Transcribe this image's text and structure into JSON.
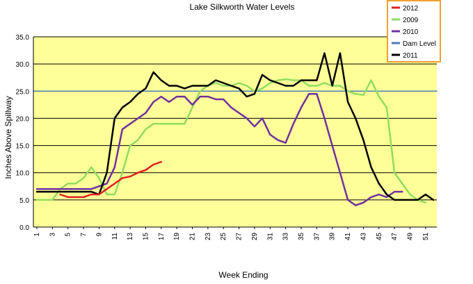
{
  "chart_data": {
    "type": "line",
    "title": "Lake Silkworth Water Levels",
    "xlabel": "Week Ending",
    "ylabel": "Inches Above Spillway",
    "xlim": [
      1,
      52
    ],
    "ylim": [
      0,
      35
    ],
    "x_ticks": [
      1,
      3,
      5,
      7,
      9,
      11,
      13,
      15,
      17,
      19,
      21,
      23,
      25,
      27,
      29,
      31,
      33,
      35,
      37,
      39,
      41,
      43,
      45,
      47,
      49,
      51
    ],
    "y_ticks": [
      "0.0",
      "5.0",
      "10.0",
      "15.0",
      "20.0",
      "25.0",
      "30.0",
      "35.0"
    ],
    "grid": true,
    "legend_position": "top-right",
    "colors": {
      "plot_background": "#ffff99",
      "grid": "#000000",
      "legend_border": "#f0a030"
    },
    "series": [
      {
        "name": "2012",
        "color": "#e02020",
        "points": [
          [
            4,
            6.0
          ],
          [
            5,
            5.5
          ],
          [
            6,
            5.5
          ],
          [
            7,
            5.5
          ],
          [
            8,
            6.0
          ],
          [
            9,
            6.0
          ],
          [
            10,
            7.0
          ],
          [
            11,
            8.0
          ],
          [
            12,
            9.0
          ],
          [
            13,
            9.3
          ],
          [
            14,
            10.0
          ],
          [
            15,
            10.5
          ],
          [
            16,
            11.5
          ],
          [
            17,
            12.0
          ]
        ]
      },
      {
        "name": "2009",
        "color": "#90dc60",
        "points": [
          [
            1,
            5.0
          ],
          [
            2,
            5.0
          ],
          [
            3,
            5.0
          ],
          [
            4,
            7.0
          ],
          [
            5,
            8.0
          ],
          [
            6,
            8.0
          ],
          [
            7,
            9.0
          ],
          [
            8,
            11.0
          ],
          [
            9,
            9.0
          ],
          [
            10,
            6.0
          ],
          [
            11,
            6.0
          ],
          [
            12,
            10.0
          ],
          [
            13,
            15.0
          ],
          [
            14,
            16.0
          ],
          [
            15,
            18.0
          ],
          [
            16,
            19.0
          ],
          [
            17,
            19.0
          ],
          [
            18,
            19.0
          ],
          [
            19,
            19.0
          ],
          [
            20,
            19.0
          ],
          [
            21,
            22.0
          ],
          [
            22,
            25.0
          ],
          [
            23,
            26.0
          ],
          [
            24,
            26.5
          ],
          [
            25,
            26.0
          ],
          [
            26,
            26.0
          ],
          [
            27,
            26.5
          ],
          [
            28,
            26.0
          ],
          [
            29,
            25.0
          ],
          [
            30,
            25.5
          ],
          [
            31,
            26.5
          ],
          [
            32,
            27.0
          ],
          [
            33,
            27.2
          ],
          [
            34,
            27.0
          ],
          [
            35,
            27.0
          ],
          [
            36,
            26.0
          ],
          [
            37,
            26.0
          ],
          [
            38,
            26.5
          ],
          [
            39,
            26.0
          ],
          [
            40,
            26.0
          ],
          [
            41,
            25.0
          ],
          [
            42,
            24.5
          ],
          [
            43,
            24.3
          ],
          [
            44,
            27.0
          ],
          [
            45,
            24.0
          ],
          [
            46,
            22.0
          ],
          [
            47,
            10.0
          ],
          [
            48,
            8.0
          ],
          [
            49,
            6.0
          ],
          [
            50,
            5.0
          ],
          [
            51,
            4.5
          ]
        ]
      },
      {
        "name": "2010",
        "color": "#7030a0",
        "points": [
          [
            1,
            7.0
          ],
          [
            2,
            7.0
          ],
          [
            3,
            7.0
          ],
          [
            4,
            7.0
          ],
          [
            5,
            7.0
          ],
          [
            6,
            7.0
          ],
          [
            7,
            7.0
          ],
          [
            8,
            7.0
          ],
          [
            9,
            7.5
          ],
          [
            10,
            8.0
          ],
          [
            11,
            11.0
          ],
          [
            12,
            18.0
          ],
          [
            13,
            19.0
          ],
          [
            14,
            20.0
          ],
          [
            15,
            21.0
          ],
          [
            16,
            23.0
          ],
          [
            17,
            24.0
          ],
          [
            18,
            23.0
          ],
          [
            19,
            24.0
          ],
          [
            20,
            24.0
          ],
          [
            21,
            22.5
          ],
          [
            22,
            24.0
          ],
          [
            23,
            24.0
          ],
          [
            24,
            23.5
          ],
          [
            25,
            23.5
          ],
          [
            26,
            22.0
          ],
          [
            27,
            21.0
          ],
          [
            28,
            20.0
          ],
          [
            29,
            18.5
          ],
          [
            30,
            20.0
          ],
          [
            31,
            17.0
          ],
          [
            32,
            16.0
          ],
          [
            33,
            15.5
          ],
          [
            34,
            19.0
          ],
          [
            35,
            22.0
          ],
          [
            36,
            24.5
          ],
          [
            37,
            24.5
          ],
          [
            38,
            20.0
          ],
          [
            39,
            15.0
          ],
          [
            40,
            10.0
          ],
          [
            41,
            5.0
          ],
          [
            42,
            4.0
          ],
          [
            43,
            4.5
          ],
          [
            44,
            5.5
          ],
          [
            45,
            6.0
          ],
          [
            46,
            5.5
          ],
          [
            47,
            6.5
          ],
          [
            48,
            6.5
          ]
        ]
      },
      {
        "name": "Dam Level",
        "color": "#4a7ebb",
        "points": [
          [
            1,
            25.0
          ],
          [
            52,
            25.0
          ]
        ]
      },
      {
        "name": "2011",
        "color": "#000000",
        "points": [
          [
            1,
            6.5
          ],
          [
            2,
            6.5
          ],
          [
            3,
            6.5
          ],
          [
            4,
            6.5
          ],
          [
            5,
            6.5
          ],
          [
            6,
            6.5
          ],
          [
            7,
            6.5
          ],
          [
            8,
            6.5
          ],
          [
            9,
            6.0
          ],
          [
            10,
            10.0
          ],
          [
            11,
            20.0
          ],
          [
            12,
            22.0
          ],
          [
            13,
            23.0
          ],
          [
            14,
            24.5
          ],
          [
            15,
            25.5
          ],
          [
            16,
            28.5
          ],
          [
            17,
            27.0
          ],
          [
            18,
            26.0
          ],
          [
            19,
            26.0
          ],
          [
            20,
            25.5
          ],
          [
            21,
            26.0
          ],
          [
            22,
            26.0
          ],
          [
            23,
            26.0
          ],
          [
            24,
            27.0
          ],
          [
            25,
            26.5
          ],
          [
            26,
            26.0
          ],
          [
            27,
            25.5
          ],
          [
            28,
            24.0
          ],
          [
            29,
            24.5
          ],
          [
            30,
            28.0
          ],
          [
            31,
            27.0
          ],
          [
            32,
            26.5
          ],
          [
            33,
            26.0
          ],
          [
            34,
            26.0
          ],
          [
            35,
            27.0
          ],
          [
            36,
            27.0
          ],
          [
            37,
            27.0
          ],
          [
            38,
            32.0
          ],
          [
            39,
            26.0
          ],
          [
            40,
            32.0
          ],
          [
            41,
            23.0
          ],
          [
            42,
            20.0
          ],
          [
            43,
            16.0
          ],
          [
            44,
            11.0
          ],
          [
            45,
            8.0
          ],
          [
            46,
            6.0
          ],
          [
            47,
            5.0
          ],
          [
            48,
            5.0
          ],
          [
            49,
            5.0
          ],
          [
            50,
            5.0
          ],
          [
            51,
            6.0
          ],
          [
            52,
            5.0
          ]
        ]
      }
    ]
  }
}
